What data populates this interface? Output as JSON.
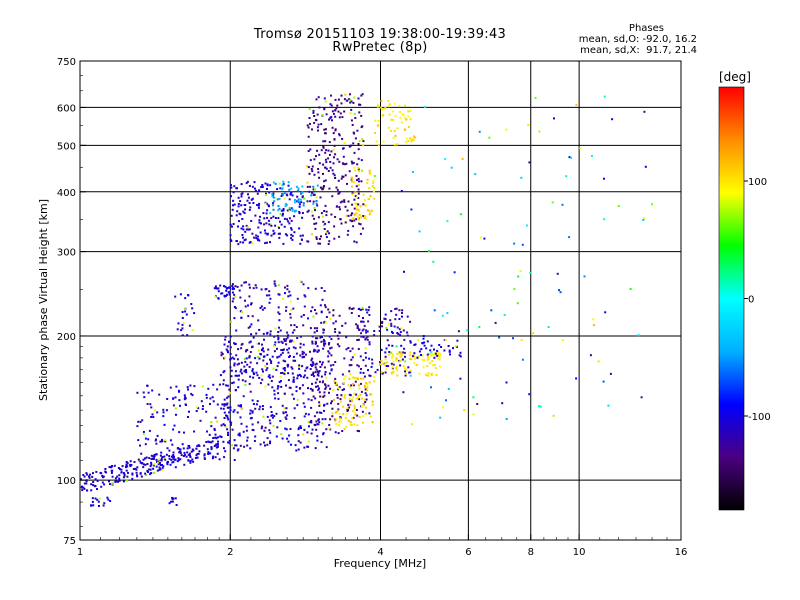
{
  "chart_data": {
    "type": "scatter",
    "title": "Tromsø 20151103 19:38:00-19:39:43",
    "subtitle": "RwPretec (8p)",
    "xlabel": "Frequency [MHz]",
    "ylabel": "Stationary phase Virtual Height [km]",
    "xscale": "log2",
    "yscale": "log",
    "xlim": [
      1,
      16
    ],
    "ylim": [
      75,
      750
    ],
    "x_ticks": [
      "1",
      "2",
      "4",
      "6",
      "8",
      "10",
      "16"
    ],
    "y_ticks": [
      "75",
      "100",
      "200",
      "300",
      "400",
      "500",
      "600",
      "750"
    ],
    "x_gridlines": [
      2,
      4,
      6,
      8,
      10
    ],
    "y_gridlines": [
      100,
      200,
      300,
      400,
      500,
      600
    ],
    "grid": true,
    "stats": {
      "header": "Phases",
      "o_line": "mean, sd,O: -92.0, 16.2",
      "x_line": "mean, sd,X:  91.7, 21.4"
    },
    "colorbar": {
      "label": "[deg]",
      "range": [
        -180,
        180
      ],
      "tick_labels": [
        "100",
        "0",
        "-100"
      ],
      "tick_values": [
        100,
        0,
        -100
      ],
      "colors": [
        "#000000",
        "#4b0082",
        "#0000ff",
        "#00b0ff",
        "#00ffff",
        "#00ff00",
        "#ffff00",
        "#ff8c00",
        "#ff0000"
      ]
    },
    "clusters": [
      {
        "x": [
          1.0,
          1.9
        ],
        "y": [
          98,
          118
        ],
        "phase": [
          -120,
          -95
        ],
        "n": 260,
        "shape": "ramp"
      },
      {
        "x": [
          1.3,
          2.1
        ],
        "y": [
          110,
          160
        ],
        "phase": [
          -125,
          -90
        ],
        "n": 160
      },
      {
        "x": [
          1.9,
          3.2
        ],
        "y": [
          115,
          200
        ],
        "phase": [
          -130,
          -90
        ],
        "n": 380
      },
      {
        "x": [
          2.0,
          3.1
        ],
        "y": [
          160,
          260
        ],
        "phase": [
          -135,
          -95
        ],
        "n": 220
      },
      {
        "x": [
          2.9,
          3.8
        ],
        "y": [
          125,
          230
        ],
        "phase": [
          -150,
          -110
        ],
        "n": 200
      },
      {
        "x": [
          3.2,
          3.9
        ],
        "y": [
          130,
          165
        ],
        "phase": [
          90,
          120
        ],
        "n": 90
      },
      {
        "x": [
          3.6,
          4.6
        ],
        "y": [
          165,
          230
        ],
        "phase": [
          -135,
          -95
        ],
        "n": 110
      },
      {
        "x": [
          4.0,
          5.3
        ],
        "y": [
          165,
          185
        ],
        "phase": [
          90,
          110
        ],
        "n": 90
      },
      {
        "x": [
          4.6,
          5.8
        ],
        "y": [
          180,
          200
        ],
        "phase": [
          -110,
          -90
        ],
        "n": 40
      },
      {
        "x": [
          2.0,
          2.8
        ],
        "y": [
          310,
          420
        ],
        "phase": [
          -120,
          -95
        ],
        "n": 220
      },
      {
        "x": [
          2.4,
          3.0
        ],
        "y": [
          360,
          420
        ],
        "phase": [
          -60,
          -30
        ],
        "n": 60
      },
      {
        "x": [
          2.85,
          3.7
        ],
        "y": [
          310,
          640
        ],
        "phase": [
          -150,
          -115
        ],
        "n": 300
      },
      {
        "x": [
          3.5,
          3.9
        ],
        "y": [
          350,
          450
        ],
        "phase": [
          90,
          120
        ],
        "n": 60
      },
      {
        "x": [
          3.9,
          4.7
        ],
        "y": [
          500,
          620
        ],
        "phase": [
          90,
          115
        ],
        "n": 60
      },
      {
        "x": [
          1.05,
          1.15
        ],
        "y": [
          88,
          92
        ],
        "phase": [
          -110,
          -95
        ],
        "n": 15
      },
      {
        "x": [
          1.5,
          1.6
        ],
        "y": [
          88,
          92
        ],
        "phase": [
          -110,
          -95
        ],
        "n": 8
      },
      {
        "x": [
          1.55,
          1.7
        ],
        "y": [
          200,
          245
        ],
        "phase": [
          -110,
          -95
        ],
        "n": 25
      },
      {
        "x": [
          1.85,
          2.05
        ],
        "y": [
          238,
          255
        ],
        "phase": [
          -110,
          -95
        ],
        "n": 35
      },
      {
        "x": [
          4.3,
          14.0
        ],
        "y": [
          130,
          640
        ],
        "phase": [
          -140,
          120
        ],
        "n": 110,
        "shape": "sparse"
      }
    ]
  }
}
